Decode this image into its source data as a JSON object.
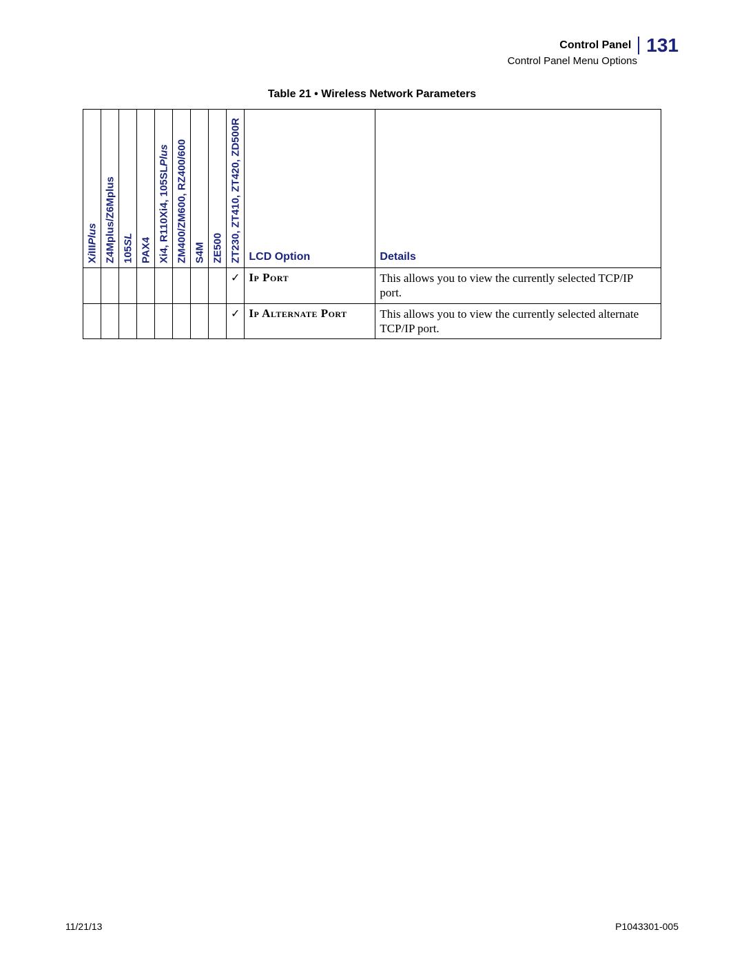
{
  "header": {
    "section": "Control Panel",
    "subsection": "Control Panel Menu Options",
    "page_number": "131"
  },
  "table_title": "Table 21 • Wireless Network Parameters",
  "colors": {
    "brand": "#1a237e",
    "text": "#000000",
    "background": "#ffffff"
  },
  "models": [
    {
      "label_parts": [
        {
          "text": "X",
          "italic": false
        },
        {
          "text": "i",
          "italic": true
        },
        {
          "text": "III",
          "italic": false
        },
        {
          "text": "Plus",
          "italic": true
        }
      ]
    },
    {
      "label_parts": [
        {
          "text": "Z4Mplus/Z6Mplus",
          "italic": false
        }
      ]
    },
    {
      "label_parts": [
        {
          "text": "105",
          "italic": false
        },
        {
          "text": "SL",
          "italic": true
        }
      ]
    },
    {
      "label_parts": [
        {
          "text": "PAX4",
          "italic": false
        }
      ]
    },
    {
      "label_parts": [
        {
          "text": "Xi4, R110Xi4, 105SL",
          "italic": false
        },
        {
          "text": "Plus",
          "italic": true
        }
      ]
    },
    {
      "label_parts": [
        {
          "text": "ZM400/ZM600, RZ400/600",
          "italic": false
        }
      ]
    },
    {
      "label_parts": [
        {
          "text": "S4M",
          "italic": false
        }
      ]
    },
    {
      "label_parts": [
        {
          "text": "ZE500",
          "italic": false
        }
      ]
    },
    {
      "label_parts": [
        {
          "text": "ZT230, ZT410, ZT420, ZD500R",
          "italic": false
        }
      ]
    }
  ],
  "col_headers": {
    "lcd": "LCD Option",
    "details": "Details"
  },
  "rows": [
    {
      "checks": [
        "",
        "",
        "",
        "",
        "",
        "",
        "",
        "",
        "✓"
      ],
      "lcd": "Ip Port",
      "details": "This allows you to view the currently selected TCP/IP port."
    },
    {
      "checks": [
        "",
        "",
        "",
        "",
        "",
        "",
        "",
        "",
        "✓"
      ],
      "lcd": "Ip Alternate Port",
      "details": "This allows you to view the currently selected alternate TCP/IP port."
    }
  ],
  "footer": {
    "date": "11/21/13",
    "doc": "P1043301-005"
  }
}
